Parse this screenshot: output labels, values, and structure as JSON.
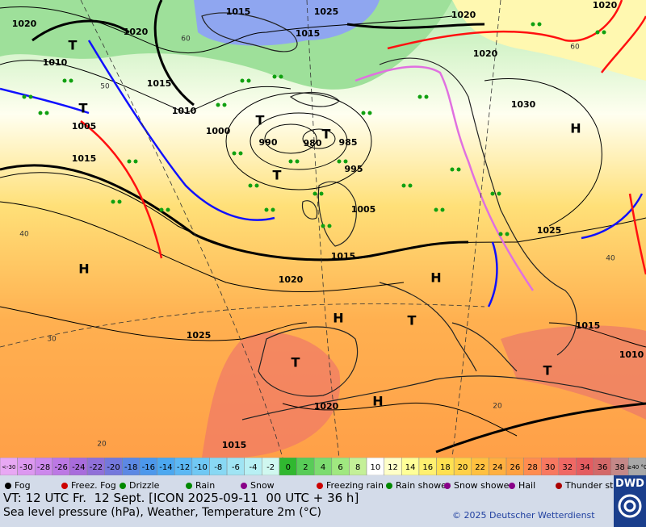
{
  "map": {
    "pressure_labels": [
      "1015",
      "1025",
      "1020",
      "1020",
      "1020",
      "1020",
      "1015",
      "1010",
      "1015",
      "1010",
      "1000",
      "1005",
      "990",
      "980",
      "985",
      "995",
      "1005",
      "1015",
      "1015",
      "1020",
      "1025",
      "1025",
      "1030",
      "1020",
      "1015",
      "1010",
      "1020",
      "1015"
    ],
    "latitude_labels": [
      "60",
      "50",
      "40",
      "30",
      "20",
      "40",
      "20",
      "60"
    ],
    "centers": [
      "H",
      "H",
      "H",
      "H",
      "H",
      "T",
      "T",
      "T",
      "T",
      "T",
      "T",
      "T",
      "T"
    ]
  },
  "temperature_scale": {
    "labels": [
      "<-30",
      "-30",
      "-28",
      "-26",
      "-24",
      "-22",
      "-20",
      "-18",
      "-16",
      "-14",
      "-12",
      "-10",
      "-8",
      "-6",
      "-4",
      "-2",
      "0",
      "2",
      "4",
      "6",
      "8",
      "10",
      "12",
      "14",
      "16",
      "18",
      "20",
      "22",
      "24",
      "26",
      "28",
      "30",
      "32",
      "34",
      "36",
      "38",
      "≥40 °C"
    ],
    "colors": [
      "#e8a8f4",
      "#dc98f0",
      "#cc88ec",
      "#bc78e4",
      "#a86cdc",
      "#9070d8",
      "#7478dc",
      "#5c88e4",
      "#4c98ec",
      "#4ca8f0",
      "#5cb8f4",
      "#70c8f4",
      "#88d8f4",
      "#a0e4f4",
      "#b8f0f4",
      "#d0f8f0",
      "#30b830",
      "#58cc58",
      "#7cdc70",
      "#a0e880",
      "#c4f098",
      "#ffffff",
      "#ffffc8",
      "#ffff98",
      "#fff070",
      "#ffe050",
      "#ffd048",
      "#ffc040",
      "#ffb040",
      "#ffa040",
      "#ff8c50",
      "#f87860",
      "#f06864",
      "#e45c60",
      "#d46868",
      "#c48888",
      "#a8a8a8"
    ]
  },
  "legend": {
    "items": [
      "Fog",
      "Freez. Fog",
      "Drizzle",
      "Rain",
      "Snow",
      "Freezing rain",
      "Rain shower",
      "Snow shower",
      "Hail",
      "Thunder storm"
    ]
  },
  "footer": {
    "valid_time": "VT: 12 UTC Fr.  12 Sept. [ICON 2025-09-11  00 UTC + 36 h]",
    "description": "Sea level pressure (hPa), Weather, Temperature 2m (°C)",
    "copyright": "© 2025 Deutscher Wetterdienst",
    "logo": "DWD"
  }
}
